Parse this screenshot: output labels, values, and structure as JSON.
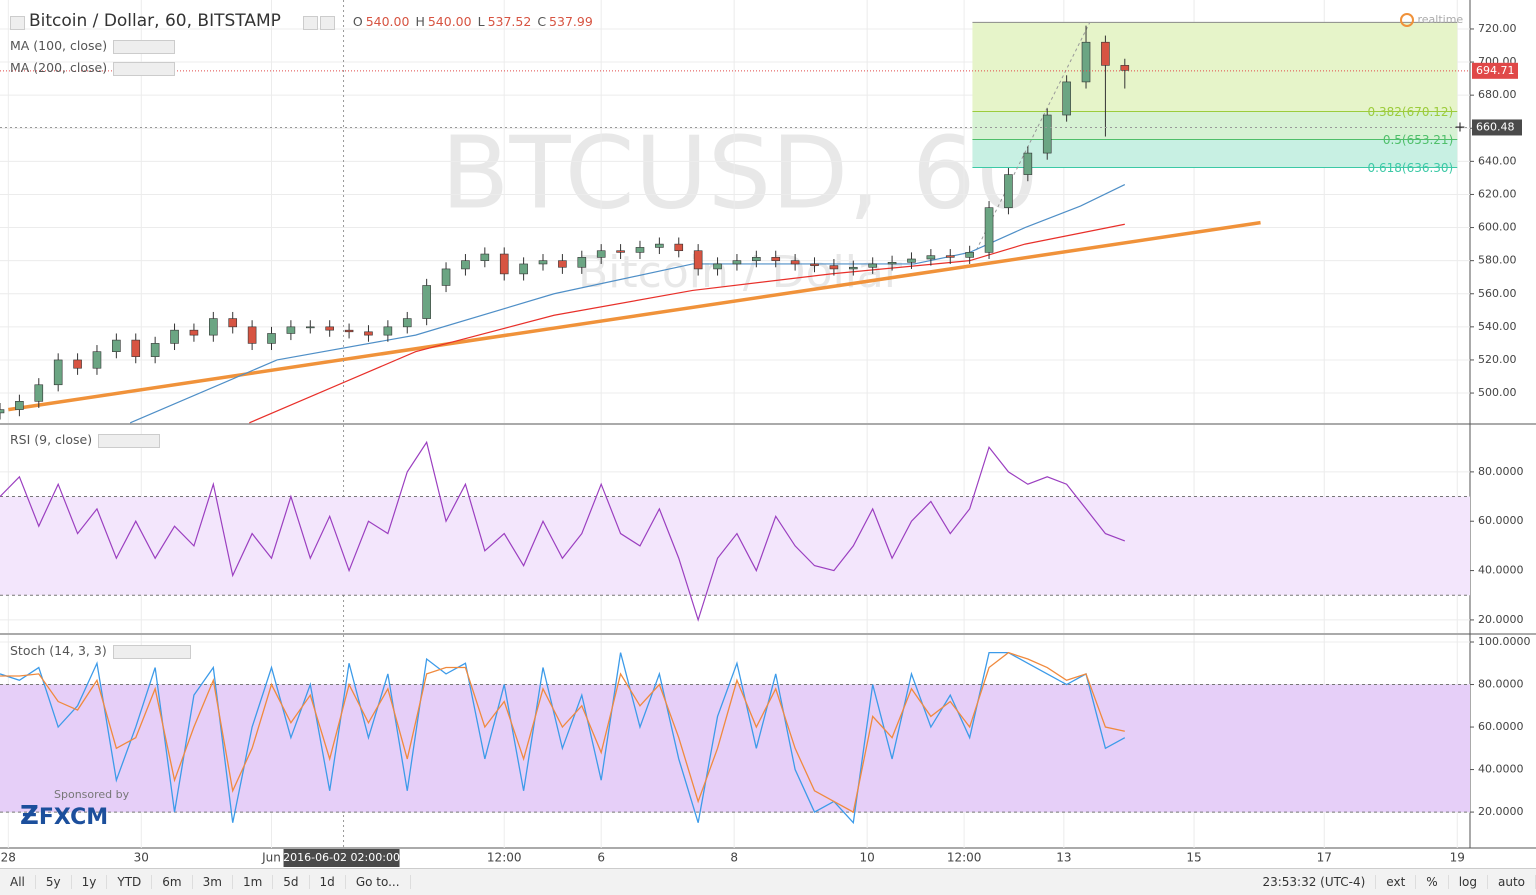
{
  "header": {
    "title": "Bitcoin / Dollar, 60, BITSTAMP",
    "realtime": "realtime",
    "studies": [
      "MA (100, close)",
      "MA (200, close)"
    ],
    "ohlc": [
      {
        "name": "O",
        "value": 540,
        "label": "540.00"
      },
      {
        "name": "H",
        "value": 540,
        "label": "540.00"
      },
      {
        "name": "L",
        "value": 537.52,
        "label": "537.52"
      },
      {
        "name": "C",
        "value": 537.99,
        "label": "537.99"
      }
    ]
  },
  "sponsor": {
    "text": "Sponsored by",
    "brand": "FXCM"
  },
  "chart_data": [
    {
      "type": "candlestick",
      "watermark": "BTCUSD, 60",
      "watermark_subtitle": "Bitcoin / Dollar",
      "up_color": "#6ba583",
      "down_color": "#d75442",
      "x": [
        0,
        7,
        14,
        21,
        28,
        35,
        42,
        49,
        56,
        63,
        70,
        77,
        84,
        91,
        98,
        105,
        112,
        119,
        126,
        133,
        140,
        147,
        154,
        161,
        168,
        175,
        182,
        189,
        196,
        203,
        210,
        217,
        224,
        231,
        238,
        245,
        252,
        259,
        266,
        273,
        280,
        287,
        294,
        301,
        308,
        315,
        322,
        329,
        336,
        343,
        350,
        357,
        364,
        371,
        378,
        385,
        392,
        399,
        406
      ],
      "open": [
        488,
        490,
        495,
        505,
        520,
        515,
        525,
        532,
        522,
        530,
        538,
        535,
        545,
        540,
        530,
        536,
        540,
        540,
        538,
        537,
        535,
        540,
        545,
        565,
        575,
        580,
        584,
        572,
        578,
        580,
        576,
        582,
        586,
        585,
        588,
        590,
        586,
        575,
        578,
        580,
        582,
        580,
        578,
        577,
        575,
        576,
        578,
        579,
        581,
        583,
        582,
        585,
        612,
        632,
        645,
        668,
        688,
        712,
        698
      ],
      "high": [
        494,
        499,
        509,
        524,
        524,
        529,
        536,
        536,
        534,
        542,
        542,
        549,
        549,
        544,
        540,
        544,
        544,
        544,
        542,
        541,
        544,
        549,
        569,
        579,
        584,
        588,
        588,
        582,
        584,
        584,
        586,
        590,
        590,
        592,
        594,
        594,
        590,
        582,
        584,
        586,
        586,
        584,
        582,
        581,
        580,
        582,
        583,
        585,
        587,
        587,
        589,
        616,
        636,
        649,
        672,
        692,
        722,
        716,
        702
      ],
      "low": [
        484,
        486,
        491,
        501,
        511,
        511,
        521,
        518,
        518,
        526,
        531,
        531,
        536,
        526,
        526,
        532,
        536,
        534,
        533,
        531,
        531,
        536,
        541,
        561,
        571,
        576,
        568,
        568,
        574,
        572,
        572,
        578,
        581,
        581,
        584,
        582,
        571,
        571,
        574,
        576,
        576,
        574,
        573,
        571,
        571,
        572,
        574,
        575,
        577,
        578,
        578,
        581,
        608,
        628,
        641,
        664,
        684,
        655,
        684
      ],
      "close": [
        490,
        495,
        505,
        520,
        515,
        525,
        532,
        522,
        530,
        538,
        535,
        545,
        540,
        530,
        536,
        540,
        540,
        538,
        537,
        535,
        540,
        545,
        565,
        575,
        580,
        584,
        572,
        578,
        580,
        576,
        582,
        586,
        585,
        588,
        590,
        586,
        575,
        578,
        580,
        582,
        580,
        578,
        577,
        575,
        576,
        578,
        579,
        581,
        583,
        582,
        585,
        612,
        632,
        645,
        668,
        688,
        712,
        698,
        695
      ],
      "overlays": [
        {
          "name": "MA (100, close)",
          "color": "#4f8fc7",
          "x": [
            47,
            100,
            150,
            200,
            250,
            300,
            330,
            350,
            370,
            390,
            406
          ],
          "values": [
            482,
            520,
            535,
            560,
            578,
            578,
            578,
            585,
            600,
            613,
            626
          ]
        },
        {
          "name": "MA (200, close)",
          "color": "#e8302a",
          "x": [
            90,
            150,
            200,
            250,
            300,
            350,
            370,
            406
          ],
          "values": [
            482,
            525,
            547,
            562,
            572,
            580,
            590,
            602
          ]
        }
      ],
      "trendline": {
        "color": "#f0923a",
        "x": [
          3,
          455
        ],
        "values": [
          490,
          603
        ]
      },
      "fib": {
        "x": [
          351,
          526
        ],
        "levels": [
          724,
          670.12,
          653.21,
          636.3
        ],
        "level_labels": [
          null,
          "0.382(670.12)",
          "0.5(653.21)",
          "0.618(636.30)"
        ],
        "zone_colors": [
          "#e6f4c9",
          "#d7f2d4",
          "#c8f0e3"
        ],
        "line_colors": [
          "#8a8a8a",
          "#9ccc3c",
          "#4fbf6a",
          "#3cc9a6"
        ]
      },
      "last_price": {
        "value": 694.71,
        "label": "694.71",
        "color": "#e04848"
      },
      "crosshair": {
        "x": 124,
        "x_label": "2016-06-02 02:00:00",
        "y": 660.48,
        "y_label": "660.48"
      },
      "xlim": [
        0,
        530.6
      ],
      "xticks": [
        {
          "value": 3,
          "label": "28"
        },
        {
          "value": 51,
          "label": "30"
        },
        {
          "value": 98,
          "label": "Jun"
        },
        {
          "value": 182,
          "label": "12:00"
        },
        {
          "value": 217,
          "label": "6"
        },
        {
          "value": 265,
          "label": "8"
        },
        {
          "value": 313,
          "label": "10"
        },
        {
          "value": 348,
          "label": "12:00"
        },
        {
          "value": 384,
          "label": "13"
        },
        {
          "value": 431,
          "label": "15"
        },
        {
          "value": 478,
          "label": "17"
        },
        {
          "value": 526,
          "label": "19"
        }
      ],
      "ylim": [
        481.9,
        737.5
      ],
      "yticks": [
        {
          "value": 500,
          "label": "500.00"
        },
        {
          "value": 520,
          "label": "520.00"
        },
        {
          "value": 540,
          "label": "540.00"
        },
        {
          "value": 560,
          "label": "560.00"
        },
        {
          "value": 580,
          "label": "580.00"
        },
        {
          "value": 600,
          "label": "600.00"
        },
        {
          "value": 620,
          "label": "620.00"
        },
        {
          "value": 640,
          "label": "640.00"
        },
        {
          "value": 660,
          "label": "660.00"
        },
        {
          "value": 680,
          "label": "680.00"
        },
        {
          "value": 700,
          "label": "700.00"
        },
        {
          "value": 720,
          "label": "720.00"
        }
      ],
      "grid": true
    },
    {
      "type": "line",
      "title": "RSI (9, close)",
      "color": "#9b3fc0",
      "band": [
        30,
        70
      ],
      "band_color": "#f3e6fc",
      "x": [
        0,
        7,
        14,
        21,
        28,
        35,
        42,
        49,
        56,
        63,
        70,
        77,
        84,
        91,
        98,
        105,
        112,
        119,
        126,
        133,
        140,
        147,
        154,
        161,
        168,
        175,
        182,
        189,
        196,
        203,
        210,
        217,
        224,
        231,
        238,
        245,
        252,
        259,
        266,
        273,
        280,
        287,
        294,
        301,
        308,
        315,
        322,
        329,
        336,
        343,
        350,
        357,
        364,
        371,
        378,
        385,
        392,
        399,
        406
      ],
      "values": [
        70,
        78,
        58,
        75,
        55,
        65,
        45,
        60,
        45,
        58,
        50,
        75,
        38,
        55,
        45,
        70,
        45,
        62,
        40,
        60,
        55,
        80,
        92,
        60,
        75,
        48,
        55,
        42,
        60,
        45,
        55,
        75,
        55,
        50,
        65,
        45,
        20,
        45,
        55,
        40,
        62,
        50,
        42,
        40,
        50,
        65,
        45,
        60,
        68,
        55,
        65,
        90,
        80,
        75,
        78,
        75,
        65,
        55,
        52
      ],
      "ylim": [
        14.7,
        99
      ],
      "yticks": [
        {
          "value": 20,
          "label": "20.0000"
        },
        {
          "value": 40,
          "label": "40.0000"
        },
        {
          "value": 60,
          "label": "60.0000"
        },
        {
          "value": 80,
          "label": "80.0000"
        }
      ],
      "grid": true
    },
    {
      "type": "line",
      "title": "Stoch (14, 3, 3)",
      "band": [
        20,
        80
      ],
      "band_color": "#e6cff8",
      "x": [
        0,
        7,
        14,
        21,
        28,
        35,
        42,
        49,
        56,
        63,
        70,
        77,
        84,
        91,
        98,
        105,
        112,
        119,
        126,
        133,
        140,
        147,
        154,
        161,
        168,
        175,
        182,
        189,
        196,
        203,
        210,
        217,
        224,
        231,
        238,
        245,
        252,
        259,
        266,
        273,
        280,
        287,
        294,
        301,
        308,
        315,
        322,
        329,
        336,
        343,
        350,
        357,
        364,
        371,
        378,
        385,
        392,
        399,
        406
      ],
      "series": [
        {
          "color": "#3d9be9",
          "values": [
            85,
            82,
            88,
            60,
            70,
            90,
            35,
            60,
            88,
            20,
            75,
            88,
            15,
            60,
            88,
            55,
            80,
            30,
            90,
            55,
            85,
            30,
            92,
            85,
            90,
            45,
            80,
            30,
            88,
            50,
            75,
            35,
            95,
            60,
            85,
            45,
            15,
            65,
            90,
            50,
            85,
            40,
            20,
            25,
            15,
            80,
            45,
            85,
            60,
            75,
            55,
            95,
            95,
            90,
            85,
            80,
            85,
            50,
            55
          ]
        },
        {
          "color": "#f08a3e",
          "values": [
            84,
            84,
            85,
            72,
            68,
            82,
            50,
            55,
            78,
            35,
            60,
            82,
            30,
            50,
            80,
            62,
            75,
            45,
            80,
            62,
            78,
            45,
            85,
            88,
            88,
            60,
            72,
            45,
            78,
            60,
            70,
            48,
            85,
            70,
            80,
            55,
            25,
            50,
            82,
            60,
            78,
            50,
            30,
            25,
            20,
            65,
            55,
            78,
            65,
            72,
            60,
            88,
            95,
            92,
            88,
            82,
            85,
            60,
            58
          ]
        }
      ],
      "ylim": [
        3.1,
        103.3
      ],
      "yticks": [
        {
          "value": 20,
          "label": "20.0000"
        },
        {
          "value": 40,
          "label": "40.0000"
        },
        {
          "value": 60,
          "label": "60.0000"
        },
        {
          "value": 80,
          "label": "80.0000"
        },
        {
          "value": 100,
          "label": "100.0000"
        }
      ],
      "grid": true
    }
  ],
  "toolbar": {
    "ranges": [
      "All",
      "5y",
      "1y",
      "YTD",
      "6m",
      "3m",
      "1m",
      "5d",
      "1d",
      "Go to..."
    ],
    "clock": "23:53:32 (UTC-4)",
    "options": [
      "ext",
      "%",
      "log",
      "auto"
    ]
  }
}
